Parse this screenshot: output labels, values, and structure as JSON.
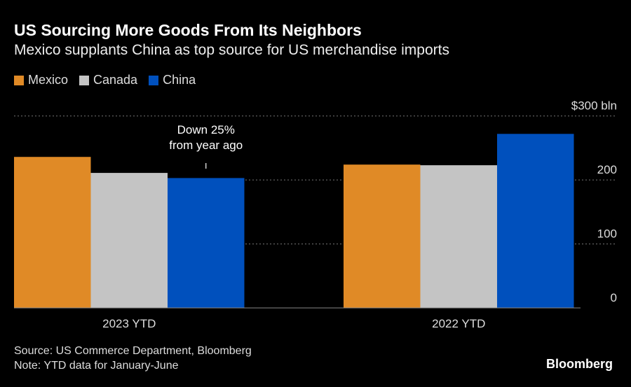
{
  "title": "US Sourcing More Goods From Its Neighbors",
  "subtitle": "Mexico supplants China as top source for US merchandise imports",
  "source": "Source: US Commerce Department, Bloomberg",
  "note": "Note: YTD data for January-June",
  "logo": "Bloomberg",
  "chart_data": {
    "type": "bar",
    "categories": [
      "2023 YTD",
      "2022 YTD"
    ],
    "series": [
      {
        "name": "Mexico",
        "color": "#e08a26",
        "values": [
          236,
          224
        ]
      },
      {
        "name": "Canada",
        "color": "#c4c4c4",
        "values": [
          211,
          223
        ]
      },
      {
        "name": "China",
        "color": "#0050bd",
        "values": [
          203,
          272
        ]
      }
    ],
    "ylim": [
      0,
      300
    ],
    "yticks": [
      "0",
      "100",
      "200",
      "$300 bln"
    ],
    "ytick_values": [
      0,
      100,
      200,
      300
    ],
    "grid": true,
    "legend_position": "top-left",
    "annotation": {
      "lines": [
        "Down 25%",
        "from year ago"
      ],
      "category": "2023 YTD",
      "series": "China"
    }
  }
}
